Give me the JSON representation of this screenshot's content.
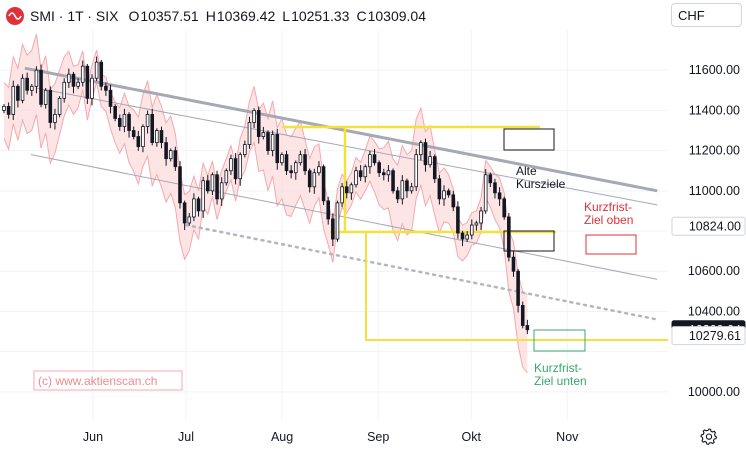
{
  "header": {
    "symbol": "SMI · 1T · SIX",
    "ohlc": [
      {
        "k": "O",
        "v": "10357.51"
      },
      {
        "k": "H",
        "v": "10369.42"
      },
      {
        "k": "L",
        "v": "10251.33"
      },
      {
        "k": "C",
        "v": "10309.04"
      }
    ]
  },
  "currency": "CHF",
  "icons": {
    "logo": "smi-logo-icon",
    "settings": "gear-icon"
  },
  "colors": {
    "up": "#2b2b2b",
    "down": "#2b2b2b",
    "band": "#fbd4d6",
    "band_line": "#f5a8ad",
    "channel": "#a6a8b3",
    "dotted": "#b4b6bd",
    "yellow": "#f3e23a",
    "red": "#e0303a",
    "green": "#3aa86b",
    "black": "#131722"
  },
  "chart_data": {
    "type": "candlestick",
    "yaxis": {
      "ticks": [
        10000,
        10200,
        10400,
        10600,
        10800,
        11000,
        11200,
        11400,
        11600
      ],
      "tick_labels": [
        "10000.00",
        "",
        "10400.00",
        "10600.00",
        "",
        "11000.00",
        "11200.00",
        "11400.00",
        "11600.00"
      ],
      "ylim": [
        9860,
        11800
      ],
      "side": "right"
    },
    "xaxis": {
      "labels": [
        "Jun",
        "Jul",
        "Aug",
        "Sep",
        "Okt",
        "Nov"
      ],
      "label_dates": [
        "2022-06-01",
        "2022-07-01",
        "2022-08-01",
        "2022-09-01",
        "2022-10-01",
        "2022-11-01"
      ]
    },
    "price_badges": [
      {
        "value": "10824.00",
        "y": 10824,
        "style": "outline"
      },
      {
        "value": "10309.04",
        "y": 10309,
        "style": "dark"
      },
      {
        "value": "10279.61",
        "y": 10280,
        "style": "outline"
      }
    ],
    "close_series": {
      "start_date": "2022-05-02",
      "values": [
        11420,
        11380,
        11520,
        11450,
        11560,
        11500,
        11520,
        11600,
        11430,
        11500,
        11340,
        11380,
        11460,
        11540,
        11580,
        11520,
        11540,
        11620,
        11460,
        11560,
        11640,
        11520,
        11500,
        11420,
        11360,
        11320,
        11380,
        11300,
        11270,
        11220,
        11320,
        11380,
        11240,
        11300,
        11240,
        11160,
        11200,
        11120,
        10940,
        10840,
        10870,
        10960,
        10900,
        11050,
        11000,
        11080,
        10960,
        11040,
        11100,
        11160,
        11060,
        11180,
        11230,
        11340,
        11400,
        11270,
        11290,
        11200,
        11280,
        11140,
        11180,
        11100,
        11090,
        11140,
        11180,
        11100,
        11020,
        11090,
        11120,
        10950,
        10860,
        10760,
        10940,
        11020,
        10990,
        11030,
        11100,
        11070,
        11120,
        11180,
        11140,
        11090,
        11080,
        11100,
        11000,
        10960,
        11050,
        11000,
        11020,
        11180,
        11240,
        11130,
        11170,
        11060,
        10960,
        11000,
        10980,
        10920,
        10790,
        10760,
        10780,
        10830,
        10840,
        10900,
        11080,
        11040,
        10990,
        10960,
        10870,
        10670,
        10600,
        10430,
        10330,
        10309
      ],
      "high_low_spread": 28
    },
    "envelope_band": {
      "color": "#fbd4d6",
      "note": "vertical-bracket"
    },
    "trendlines": [
      {
        "name": "",
        "style": "solid-thick",
        "from": [
          "2022-05-10",
          11610
        ],
        "to": [
          "2022-11-30",
          11000
        ]
      },
      {
        "name": "",
        "style": "solid-thin",
        "from": [
          "2022-05-14",
          11510
        ],
        "to": [
          "2022-11-30",
          10930
        ]
      },
      {
        "name": "",
        "style": "solid-thin",
        "from": [
          "2022-05-12",
          11180
        ],
        "to": [
          "2022-11-30",
          10560
        ]
      },
      {
        "name": "",
        "style": "dotted",
        "from": [
          "2022-07-01",
          10830
        ],
        "to": [
          "2022-11-30",
          10360
        ]
      }
    ],
    "annotations": [
      {
        "text_lines": [
          "Alte",
          "Kursziele"
        ],
        "color": "#131722",
        "at": [
          "2022-10-18",
          11000
        ]
      },
      {
        "text_lines": [
          "Kurzfrist-",
          "Ziel oben"
        ],
        "color": "#e0303a",
        "at": [
          "2022-11-10",
          10810
        ]
      },
      {
        "text_lines": [
          "Kurzfrist-",
          "Ziel unten"
        ],
        "color": "#3aa86b",
        "at": [
          "2022-10-28",
          10060
        ]
      }
    ],
    "watermark": "(c) www.aktienscan.ch"
  }
}
